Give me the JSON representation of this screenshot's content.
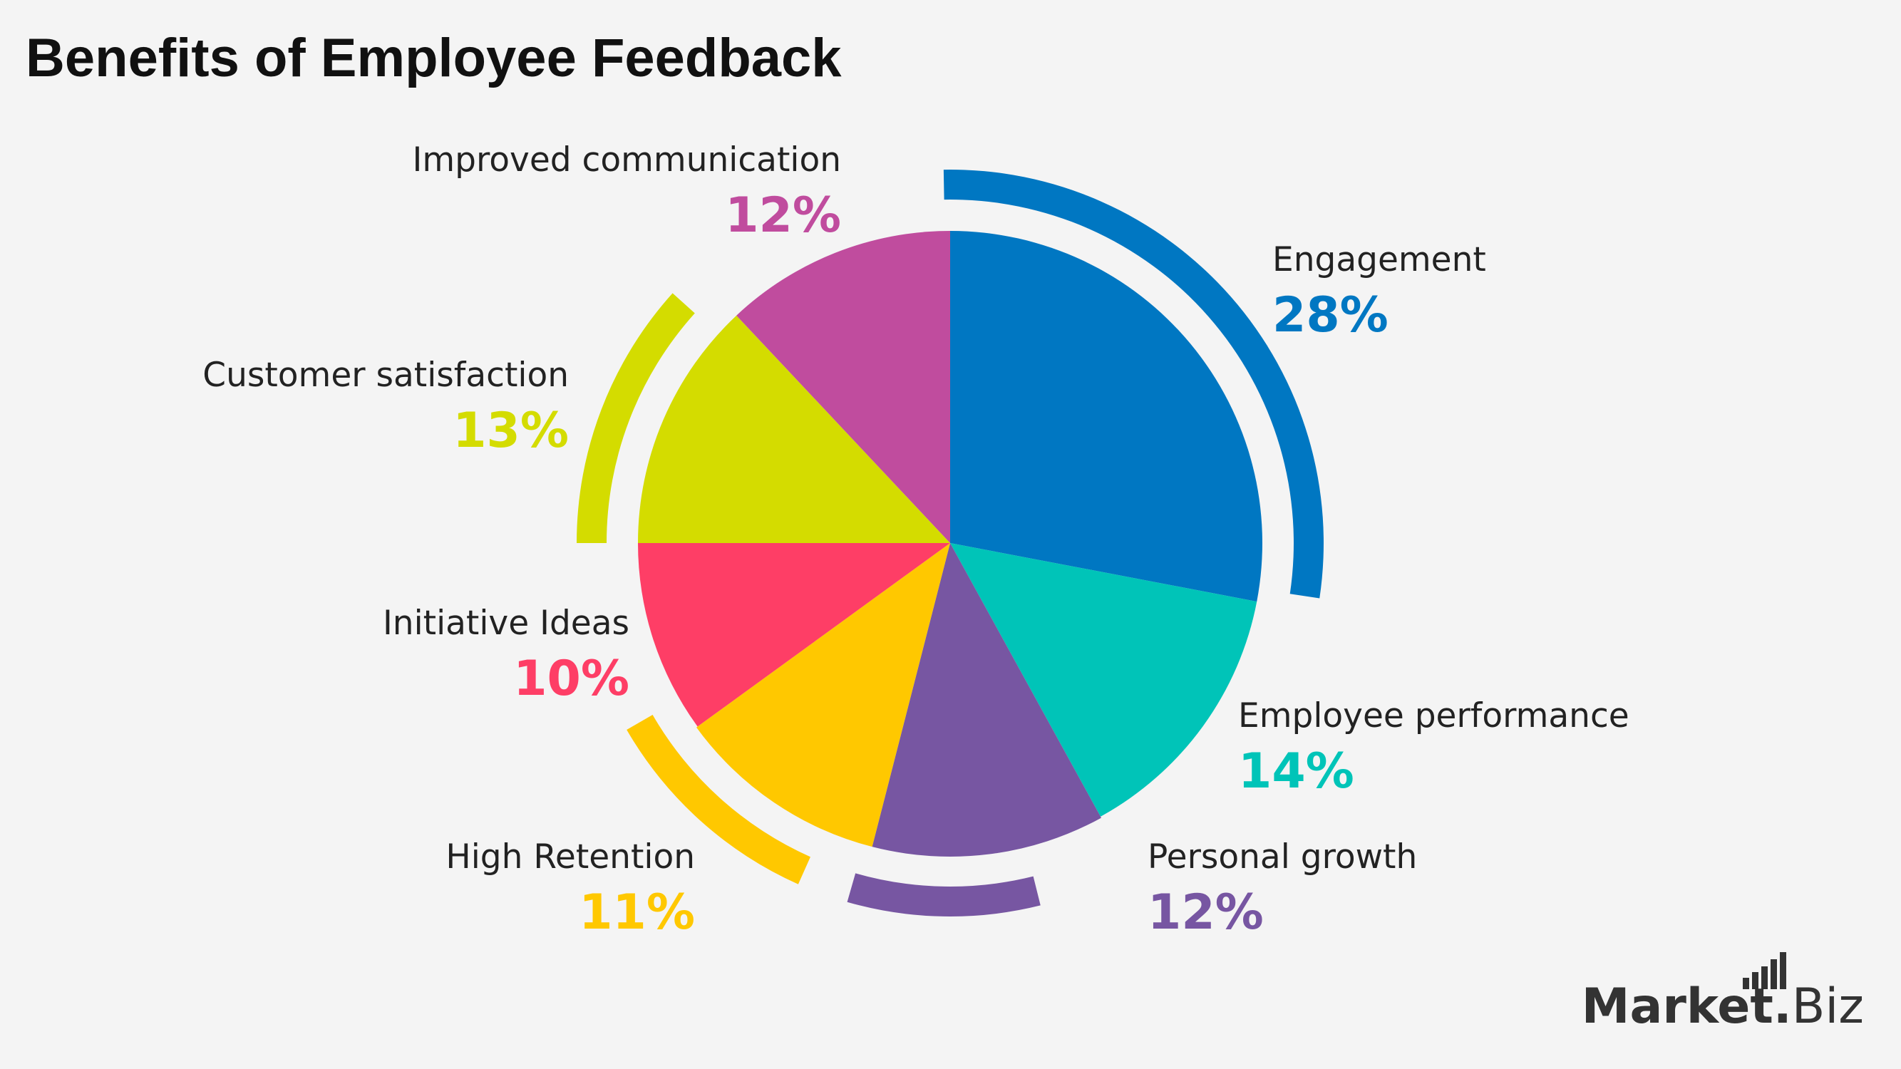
{
  "title": "Benefits of Employee Feedback",
  "brand": {
    "name": "Market",
    "dot": ".",
    "suffix": "Biz"
  },
  "chart_data": {
    "type": "pie",
    "title": "Benefits of Employee Feedback",
    "slices": [
      {
        "label": "Engagement",
        "value": 28,
        "display": "28%",
        "color": "#0077c2",
        "radius": 438,
        "arc": true
      },
      {
        "label": "Employee performance",
        "value": 14,
        "display": "14%",
        "color": "#00c4b8",
        "radius": 438,
        "arc": false
      },
      {
        "label": "Personal growth",
        "value": 12,
        "display": "12%",
        "color": "#7756a2",
        "radius": 440,
        "arc": true
      },
      {
        "label": "High Retention",
        "value": 11,
        "display": "11%",
        "color": "#ffc800",
        "radius": 440,
        "arc": true
      },
      {
        "label": "Initiative Ideas",
        "value": 10,
        "display": "10%",
        "color": "#fe3e66",
        "radius": 438,
        "arc": false
      },
      {
        "label": "Customer satisfaction",
        "value": 13,
        "display": "13%",
        "color": "#d4dc00",
        "radius": 438,
        "arc": true
      },
      {
        "label": "Improved communication",
        "value": 12,
        "display": "12%",
        "color": "#c04c9e",
        "radius": 438,
        "arc": false
      }
    ]
  }
}
